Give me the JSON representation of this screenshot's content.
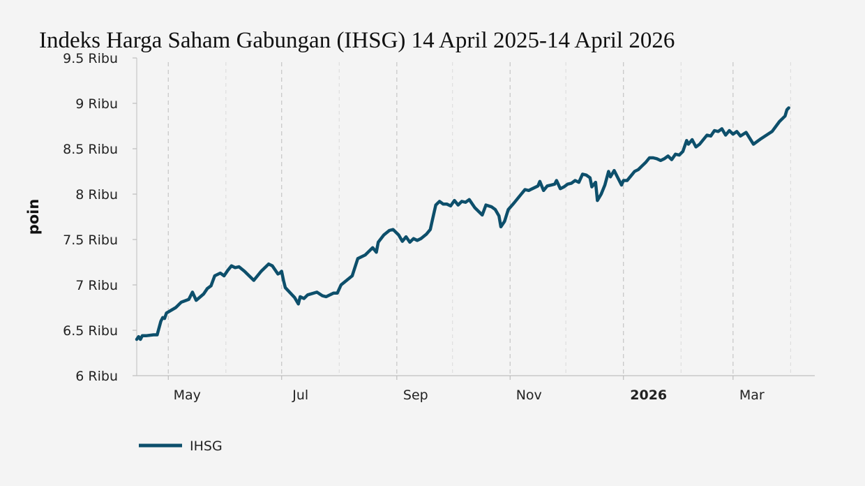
{
  "chart_data": {
    "type": "line",
    "title": "Indeks Harga Saham Gabungan (IHSG) 14 April 2025-14 April 2026",
    "ylabel": "poin",
    "xlabel": "",
    "ylim": [
      6000,
      9500
    ],
    "y_ticks": [
      {
        "value": 6000,
        "label": "6 Ribu"
      },
      {
        "value": 6500,
        "label": "6.5 Ribu"
      },
      {
        "value": 7000,
        "label": "7 Ribu"
      },
      {
        "value": 7500,
        "label": "7.5 Ribu"
      },
      {
        "value": 8000,
        "label": "8 Ribu"
      },
      {
        "value": 8500,
        "label": "8.5 Ribu"
      },
      {
        "value": 9000,
        "label": "9 Ribu"
      },
      {
        "value": 9500,
        "label": "9.5 Ribu"
      }
    ],
    "xlim": [
      "2025-04-14",
      "2026-04-14"
    ],
    "x_ticks": [
      {
        "date": "2025-05-01",
        "label": "May",
        "bold": false
      },
      {
        "date": "2025-07-01",
        "label": "Jul",
        "bold": false
      },
      {
        "date": "2025-09-01",
        "label": "Sep",
        "bold": false
      },
      {
        "date": "2025-11-01",
        "label": "Nov",
        "bold": false
      },
      {
        "date": "2026-01-01",
        "label": "2026",
        "bold": true
      },
      {
        "date": "2026-03-01",
        "label": "Mar",
        "bold": false
      }
    ],
    "x_minor_ticks": [
      "2025-06-01",
      "2025-08-01",
      "2025-10-01",
      "2025-12-01",
      "2026-02-01",
      "2026-04-01"
    ],
    "grid": "vertical-dashed",
    "legend_position": "bottom-left",
    "series": [
      {
        "name": "IHSG",
        "color": "#0d4f6b",
        "points": [
          [
            "2025-04-14",
            6400
          ],
          [
            "2025-04-15",
            6430
          ],
          [
            "2025-04-16",
            6400
          ],
          [
            "2025-04-17",
            6440
          ],
          [
            "2025-04-19",
            6440
          ],
          [
            "2025-04-23",
            6450
          ],
          [
            "2025-04-25",
            6450
          ],
          [
            "2025-04-27",
            6600
          ],
          [
            "2025-04-28",
            6640
          ],
          [
            "2025-04-29",
            6630
          ],
          [
            "2025-04-30",
            6690
          ],
          [
            "2025-05-05",
            6750
          ],
          [
            "2025-05-08",
            6810
          ],
          [
            "2025-05-12",
            6840
          ],
          [
            "2025-05-14",
            6920
          ],
          [
            "2025-05-16",
            6830
          ],
          [
            "2025-05-20",
            6900
          ],
          [
            "2025-05-22",
            6960
          ],
          [
            "2025-05-24",
            6990
          ],
          [
            "2025-05-26",
            7100
          ],
          [
            "2025-05-29",
            7130
          ],
          [
            "2025-05-31",
            7100
          ],
          [
            "2025-06-02",
            7160
          ],
          [
            "2025-06-04",
            7210
          ],
          [
            "2025-06-06",
            7190
          ],
          [
            "2025-06-08",
            7200
          ],
          [
            "2025-06-11",
            7150
          ],
          [
            "2025-06-16",
            7050
          ],
          [
            "2025-06-20",
            7150
          ],
          [
            "2025-06-24",
            7230
          ],
          [
            "2025-06-26",
            7210
          ],
          [
            "2025-06-29",
            7120
          ],
          [
            "2025-06-30",
            7130
          ],
          [
            "2025-07-01",
            7150
          ],
          [
            "2025-07-02",
            7050
          ],
          [
            "2025-07-03",
            6970
          ],
          [
            "2025-07-08",
            6860
          ],
          [
            "2025-07-10",
            6790
          ],
          [
            "2025-07-11",
            6870
          ],
          [
            "2025-07-13",
            6850
          ],
          [
            "2025-07-15",
            6890
          ],
          [
            "2025-07-20",
            6920
          ],
          [
            "2025-07-23",
            6880
          ],
          [
            "2025-07-25",
            6870
          ],
          [
            "2025-07-29",
            6910
          ],
          [
            "2025-07-31",
            6910
          ],
          [
            "2025-08-02",
            7000
          ],
          [
            "2025-08-05",
            7050
          ],
          [
            "2025-08-08",
            7100
          ],
          [
            "2025-08-11",
            7290
          ],
          [
            "2025-08-15",
            7330
          ],
          [
            "2025-08-19",
            7410
          ],
          [
            "2025-08-21",
            7360
          ],
          [
            "2025-08-22",
            7470
          ],
          [
            "2025-08-25",
            7550
          ],
          [
            "2025-08-28",
            7600
          ],
          [
            "2025-08-30",
            7610
          ],
          [
            "2025-09-02",
            7550
          ],
          [
            "2025-09-04",
            7480
          ],
          [
            "2025-09-06",
            7530
          ],
          [
            "2025-09-08",
            7470
          ],
          [
            "2025-09-10",
            7510
          ],
          [
            "2025-09-12",
            7490
          ],
          [
            "2025-09-14",
            7510
          ],
          [
            "2025-09-17",
            7560
          ],
          [
            "2025-09-19",
            7610
          ],
          [
            "2025-09-20",
            7700
          ],
          [
            "2025-09-22",
            7880
          ],
          [
            "2025-09-24",
            7920
          ],
          [
            "2025-09-26",
            7890
          ],
          [
            "2025-09-28",
            7890
          ],
          [
            "2025-09-30",
            7870
          ],
          [
            "2025-10-02",
            7930
          ],
          [
            "2025-10-04",
            7880
          ],
          [
            "2025-10-06",
            7920
          ],
          [
            "2025-10-08",
            7910
          ],
          [
            "2025-10-10",
            7940
          ],
          [
            "2025-10-13",
            7850
          ],
          [
            "2025-10-17",
            7770
          ],
          [
            "2025-10-19",
            7880
          ],
          [
            "2025-10-22",
            7860
          ],
          [
            "2025-10-24",
            7830
          ],
          [
            "2025-10-26",
            7760
          ],
          [
            "2025-10-27",
            7640
          ],
          [
            "2025-10-29",
            7700
          ],
          [
            "2025-10-31",
            7830
          ],
          [
            "2025-11-03",
            7900
          ],
          [
            "2025-11-05",
            7950
          ],
          [
            "2025-11-07",
            8000
          ],
          [
            "2025-11-09",
            8050
          ],
          [
            "2025-11-11",
            8040
          ],
          [
            "2025-11-13",
            8060
          ],
          [
            "2025-11-16",
            8090
          ],
          [
            "2025-11-17",
            8140
          ],
          [
            "2025-11-19",
            8040
          ],
          [
            "2025-11-21",
            8090
          ],
          [
            "2025-11-23",
            8100
          ],
          [
            "2025-11-25",
            8110
          ],
          [
            "2025-11-26",
            8150
          ],
          [
            "2025-11-28",
            8060
          ],
          [
            "2025-11-30",
            8080
          ],
          [
            "2025-12-02",
            8110
          ],
          [
            "2025-12-04",
            8120
          ],
          [
            "2025-12-06",
            8150
          ],
          [
            "2025-12-08",
            8130
          ],
          [
            "2025-12-10",
            8220
          ],
          [
            "2025-12-12",
            8210
          ],
          [
            "2025-12-14",
            8180
          ],
          [
            "2025-12-15",
            8080
          ],
          [
            "2025-12-17",
            8130
          ],
          [
            "2025-12-18",
            7930
          ],
          [
            "2025-12-20",
            8000
          ],
          [
            "2025-12-22",
            8100
          ],
          [
            "2025-12-24",
            8250
          ],
          [
            "2025-12-25",
            8190
          ],
          [
            "2025-12-27",
            8260
          ],
          [
            "2025-12-29",
            8180
          ],
          [
            "2025-12-31",
            8100
          ],
          [
            "2026-01-01",
            8150
          ],
          [
            "2026-01-03",
            8150
          ],
          [
            "2026-01-05",
            8200
          ],
          [
            "2026-01-07",
            8250
          ],
          [
            "2026-01-09",
            8270
          ],
          [
            "2026-01-11",
            8310
          ],
          [
            "2026-01-13",
            8350
          ],
          [
            "2026-01-15",
            8400
          ],
          [
            "2026-01-17",
            8400
          ],
          [
            "2026-01-19",
            8390
          ],
          [
            "2026-01-21",
            8370
          ],
          [
            "2026-01-23",
            8390
          ],
          [
            "2026-01-25",
            8420
          ],
          [
            "2026-01-27",
            8380
          ],
          [
            "2026-01-29",
            8440
          ],
          [
            "2026-01-31",
            8430
          ],
          [
            "2026-02-02",
            8470
          ],
          [
            "2026-02-04",
            8590
          ],
          [
            "2026-02-05",
            8550
          ],
          [
            "2026-02-07",
            8600
          ],
          [
            "2026-02-09",
            8520
          ],
          [
            "2026-02-11",
            8550
          ],
          [
            "2026-02-13",
            8600
          ],
          [
            "2026-02-15",
            8650
          ],
          [
            "2026-02-17",
            8640
          ],
          [
            "2026-02-19",
            8700
          ],
          [
            "2026-02-21",
            8690
          ],
          [
            "2026-02-23",
            8720
          ],
          [
            "2026-02-25",
            8650
          ],
          [
            "2026-02-27",
            8700
          ],
          [
            "2026-03-01",
            8660
          ],
          [
            "2026-03-03",
            8690
          ],
          [
            "2026-03-05",
            8640
          ],
          [
            "2026-03-08",
            8680
          ],
          [
            "2026-03-12",
            8550
          ],
          [
            "2026-03-16",
            8610
          ],
          [
            "2026-03-19",
            8650
          ],
          [
            "2026-03-22",
            8690
          ],
          [
            "2026-03-26",
            8800
          ],
          [
            "2026-03-29",
            8860
          ],
          [
            "2026-03-30",
            8930
          ],
          [
            "2026-03-31",
            8950
          ]
        ]
      }
    ]
  }
}
